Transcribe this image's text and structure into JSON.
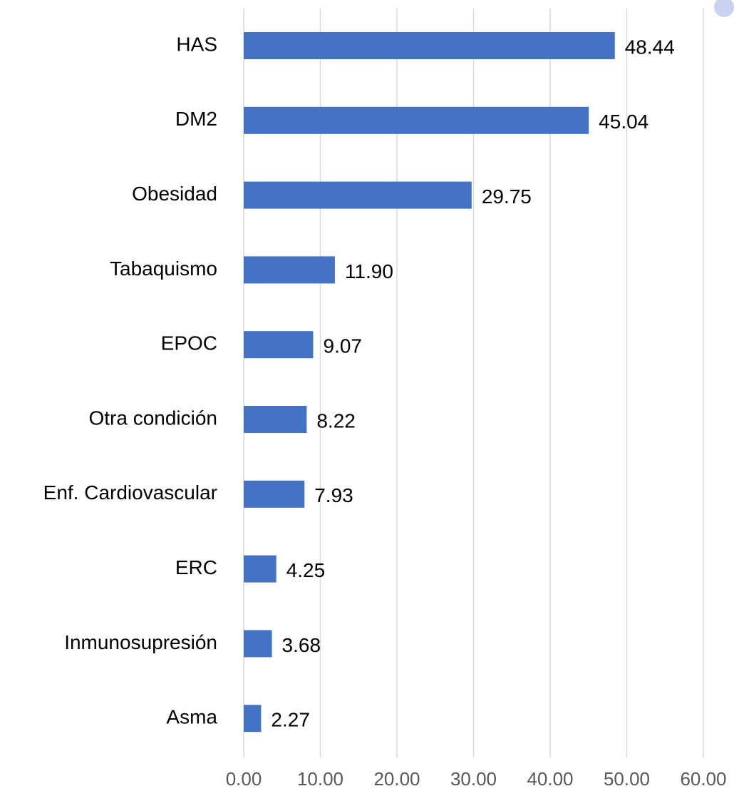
{
  "chart_data": {
    "type": "bar",
    "orientation": "horizontal",
    "categories": [
      "HAS",
      "DM2",
      "Obesidad",
      "Tabaquismo",
      "EPOC",
      "Otra condición",
      "Enf. Cardiovascular",
      "ERC",
      "Inmunosupresión",
      "Asma"
    ],
    "values": [
      48.44,
      45.04,
      29.75,
      11.9,
      9.07,
      8.22,
      7.93,
      4.25,
      3.68,
      2.27
    ],
    "value_labels": [
      "48.44",
      "45.04",
      "29.75",
      "11.90",
      "9.07",
      "8.22",
      "7.93",
      "4.25",
      "3.68",
      "2.27"
    ],
    "color": "#4472c4",
    "xlim": [
      0,
      60
    ],
    "xticks": [
      {
        "value": 0,
        "label": "0.00"
      },
      {
        "value": 10,
        "label": "10.00"
      },
      {
        "value": 20,
        "label": "20.00"
      },
      {
        "value": 30,
        "label": "30.00"
      },
      {
        "value": 40,
        "label": "40.00"
      },
      {
        "value": 50,
        "label": "50.00"
      },
      {
        "value": 60,
        "label": "60.00"
      }
    ],
    "grid": true
  }
}
